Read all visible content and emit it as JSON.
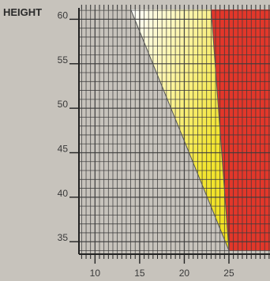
{
  "chart_data": {
    "type": "area",
    "title": "",
    "ylabel": "HEIGHT",
    "xlabel": "",
    "xlim": [
      8.2,
      29.6
    ],
    "ylim": [
      33.6,
      61.1
    ],
    "x_ticks": [
      10,
      15,
      20,
      25
    ],
    "y_ticks": [
      35,
      40,
      45,
      50,
      55,
      60
    ],
    "grid": true,
    "regions": [
      {
        "fill": "yellow-white-gradient",
        "color": "#f1e21f",
        "boundary": [
          [
            14,
            61.1
          ],
          [
            23,
            61.1
          ],
          [
            25,
            34
          ],
          [
            25,
            34
          ]
        ]
      },
      {
        "fill": "red",
        "color": "#e2372a",
        "boundary": [
          [
            23,
            61.1
          ],
          [
            29.6,
            61.1
          ],
          [
            29.6,
            34
          ],
          [
            25,
            34
          ]
        ]
      }
    ],
    "lines": [
      {
        "name": "diagonal-boundary",
        "x": [
          14,
          25
        ],
        "y": [
          61.1,
          34
        ]
      },
      {
        "name": "steep-boundary",
        "x": [
          23,
          25
        ],
        "y": [
          61.1,
          34
        ]
      }
    ]
  },
  "colors": {
    "background": "#c7c3bc",
    "grid": "#3b3b3b",
    "yellow": "#f1e21f",
    "red": "#e2372a",
    "white": "#ffffff"
  }
}
